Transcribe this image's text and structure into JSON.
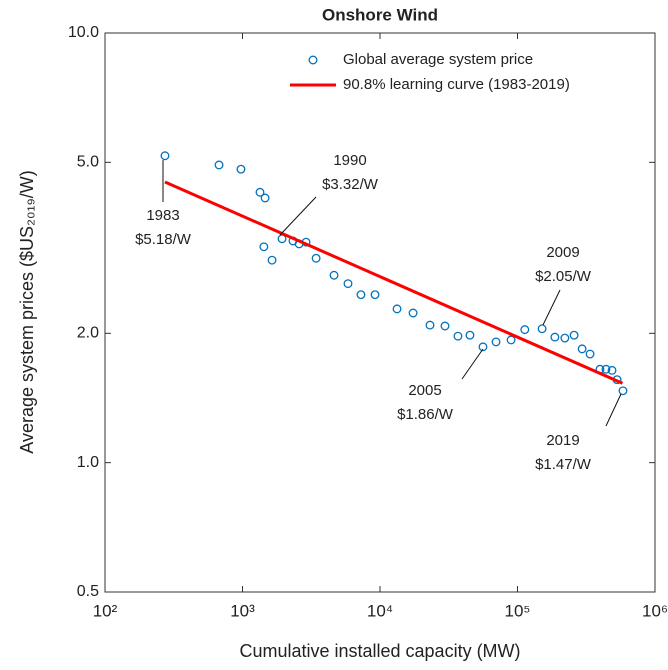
{
  "chart_data": {
    "type": "scatter",
    "title": "Onshore Wind",
    "xlabel": "Cumulative installed capacity (MW)",
    "ylabel": "Average system prices ($US₂₀₁₉/W)",
    "xscale": "log",
    "yscale": "log",
    "xlim": [
      100,
      1000000
    ],
    "ylim": [
      0.5,
      10
    ],
    "xticks": [
      {
        "value": 100,
        "label": "10²"
      },
      {
        "value": 1000,
        "label": "10³"
      },
      {
        "value": 10000,
        "label": "10⁴"
      },
      {
        "value": 100000,
        "label": "10⁵"
      },
      {
        "value": 1000000,
        "label": "10⁶"
      }
    ],
    "yticks": [
      0.5,
      {
        "value": 1,
        "label": "1.0"
      },
      {
        "value": 2,
        "label": "2.0"
      },
      {
        "value": 5,
        "label": "5.0"
      },
      {
        "value": 10,
        "label": "10.0"
      }
    ],
    "legend": "top-right",
    "series": [
      {
        "name": "Global average system price",
        "color": "#0072bd",
        "kind": "marker",
        "x": [
          273,
          675,
          975,
          1340,
          1460,
          1430,
          1640,
          1940,
          2330,
          2580,
          2900,
          3430,
          4630,
          5850,
          7270,
          9200,
          13300,
          17400,
          23100,
          29700,
          36900,
          45100,
          56100,
          69800,
          89800,
          113000,
          151000,
          187000,
          221000,
          258000,
          295000,
          337000,
          398000,
          440000,
          487000,
          530000,
          585000
        ],
        "values": [
          5.18,
          4.93,
          4.82,
          4.26,
          4.13,
          3.18,
          2.96,
          3.32,
          3.28,
          3.23,
          3.26,
          2.99,
          2.73,
          2.61,
          2.46,
          2.46,
          2.28,
          2.23,
          2.09,
          2.08,
          1.97,
          1.98,
          1.86,
          1.91,
          1.93,
          2.04,
          2.05,
          1.96,
          1.95,
          1.98,
          1.84,
          1.79,
          1.65,
          1.65,
          1.64,
          1.56,
          1.47
        ]
      },
      {
        "name": "90.8% learning curve (1983-2019)",
        "color": "#ff0000",
        "kind": "line",
        "x": [
          273,
          580000
        ],
        "values": [
          4.5,
          1.53
        ]
      }
    ],
    "annotations": [
      [
        "1983",
        "$5.18/W"
      ],
      [
        "1990",
        "$3.32/W"
      ],
      [
        "2009",
        "$2.05/W"
      ],
      [
        "2005",
        "$1.86/W"
      ],
      [
        "2019",
        "$1.47/W"
      ]
    ]
  }
}
